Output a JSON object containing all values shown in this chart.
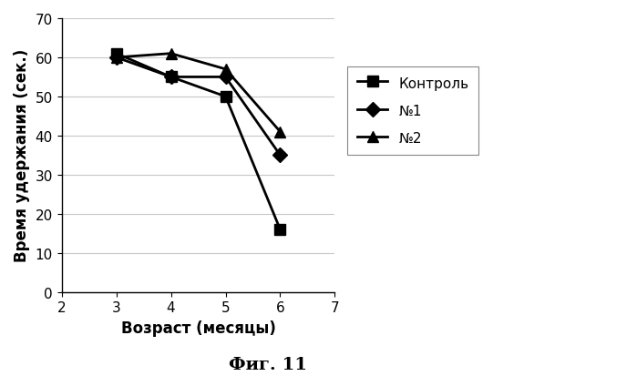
{
  "x": [
    3,
    4,
    5,
    6
  ],
  "kontrole": [
    61,
    55,
    50,
    16
  ],
  "no1": [
    60,
    55,
    55,
    35
  ],
  "no2": [
    60,
    61,
    57,
    41
  ],
  "xlabel": "Возраст (месяцы)",
  "ylabel": "Время удержания (сек.)",
  "caption": "Фиг. 11",
  "legend_kontrole": "Контроль",
  "legend_no1": "№1",
  "legend_no2": "№2",
  "xlim": [
    2,
    7
  ],
  "ylim": [
    0,
    70
  ],
  "xticks": [
    2,
    3,
    4,
    5,
    6,
    7
  ],
  "yticks": [
    0,
    10,
    20,
    30,
    40,
    50,
    60,
    70
  ],
  "color": "#000000",
  "grid_color": "#c8c8c8"
}
